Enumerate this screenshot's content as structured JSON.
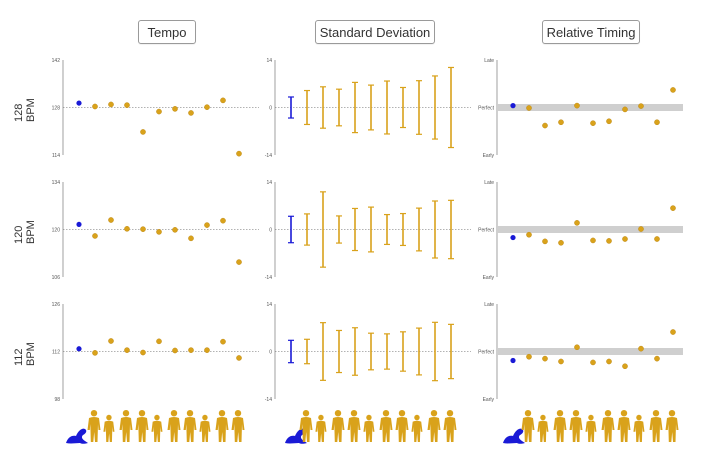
{
  "column_titles": {
    "tempo": "Tempo",
    "sd": "Standard Deviation",
    "relative": "Relative Timing"
  },
  "row_labels": {
    "r128": "128 BPM",
    "r120": "120 BPM",
    "r112": "112 BPM"
  },
  "colors": {
    "robot": "#1a1ad6",
    "human": "#d9a21b",
    "gray_band": "#cfcfcf",
    "axis": "#888888"
  },
  "icons": {
    "robot": "seal-robot-icon",
    "human": "human-figure-icon"
  },
  "human_count": 10,
  "chart_data": [
    {
      "id": "tempo-128",
      "type": "scatter",
      "title": "Tempo",
      "row": "128 BPM",
      "yticks": [
        "142",
        "128",
        "114"
      ],
      "ylim": [
        114,
        142
      ],
      "reference": 128,
      "robot": 129.3,
      "values": [
        128.3,
        128.9,
        128.7,
        120.8,
        126.8,
        127.6,
        126.4,
        128.1,
        130.1,
        114.4
      ]
    },
    {
      "id": "tempo-120",
      "type": "scatter",
      "title": "Tempo",
      "row": "120 BPM",
      "yticks": [
        "134",
        "120",
        "106"
      ],
      "ylim": [
        106,
        134
      ],
      "reference": 120,
      "robot": 121.5,
      "values": [
        118.1,
        122.8,
        120.2,
        120.1,
        119.3,
        119.9,
        117.4,
        121.3,
        122.6,
        110.4
      ]
    },
    {
      "id": "tempo-112",
      "type": "scatter",
      "title": "Tempo",
      "row": "112 BPM",
      "yticks": [
        "126",
        "112",
        "98"
      ],
      "ylim": [
        98,
        126
      ],
      "reference": 112,
      "robot": 112.8,
      "values": [
        111.6,
        115.1,
        112.4,
        111.7,
        115.0,
        112.3,
        112.4,
        112.4,
        114.9,
        110.1
      ]
    },
    {
      "id": "sd-128",
      "type": "errorbar",
      "title": "Standard Deviation",
      "row": "128 BPM",
      "yticks": [
        "14",
        "0",
        "-14"
      ],
      "ylim": [
        -14,
        14
      ],
      "robot": 3.1,
      "values": [
        5.0,
        6.1,
        5.4,
        7.4,
        6.6,
        7.8,
        5.9,
        7.9,
        9.3,
        11.8
      ]
    },
    {
      "id": "sd-120",
      "type": "errorbar",
      "title": "Standard Deviation",
      "row": "120 BPM",
      "yticks": [
        "14",
        "0",
        "-14"
      ],
      "ylim": [
        -14,
        14
      ],
      "robot": 3.9,
      "values": [
        4.6,
        11.1,
        4.0,
        6.2,
        6.6,
        4.4,
        4.7,
        6.3,
        8.4,
        8.6
      ]
    },
    {
      "id": "sd-112",
      "type": "errorbar",
      "title": "Standard Deviation",
      "row": "112 BPM",
      "yticks": [
        "14",
        "0",
        "-14"
      ],
      "ylim": [
        -14,
        14
      ],
      "robot": 3.3,
      "values": [
        3.6,
        8.5,
        6.2,
        7.0,
        5.4,
        5.2,
        5.8,
        6.9,
        8.6,
        8.0
      ]
    },
    {
      "id": "rel-128",
      "type": "scatter",
      "title": "Relative Timing",
      "row": "128 BPM",
      "yticks": [
        "Late",
        "Perfect",
        "Early"
      ],
      "ylim": [
        -1,
        1
      ],
      "robot": 0.04,
      "values": [
        -0.01,
        -0.38,
        -0.31,
        0.04,
        -0.33,
        -0.29,
        -0.04,
        0.03,
        -0.31,
        0.37
      ]
    },
    {
      "id": "rel-120",
      "type": "scatter",
      "title": "Relative Timing",
      "row": "120 BPM",
      "yticks": [
        "Late",
        "Perfect",
        "Early"
      ],
      "ylim": [
        -1,
        1
      ],
      "robot": -0.17,
      "values": [
        -0.11,
        -0.25,
        -0.28,
        0.14,
        -0.23,
        -0.24,
        -0.2,
        0.01,
        -0.2,
        0.45
      ]
    },
    {
      "id": "rel-112",
      "type": "scatter",
      "title": "Relative Timing",
      "row": "112 BPM",
      "yticks": [
        "Late",
        "Perfect",
        "Early"
      ],
      "ylim": [
        -1,
        1
      ],
      "robot": -0.19,
      "values": [
        -0.11,
        -0.15,
        -0.21,
        0.09,
        -0.23,
        -0.21,
        -0.31,
        0.06,
        -0.15,
        0.41
      ]
    }
  ]
}
